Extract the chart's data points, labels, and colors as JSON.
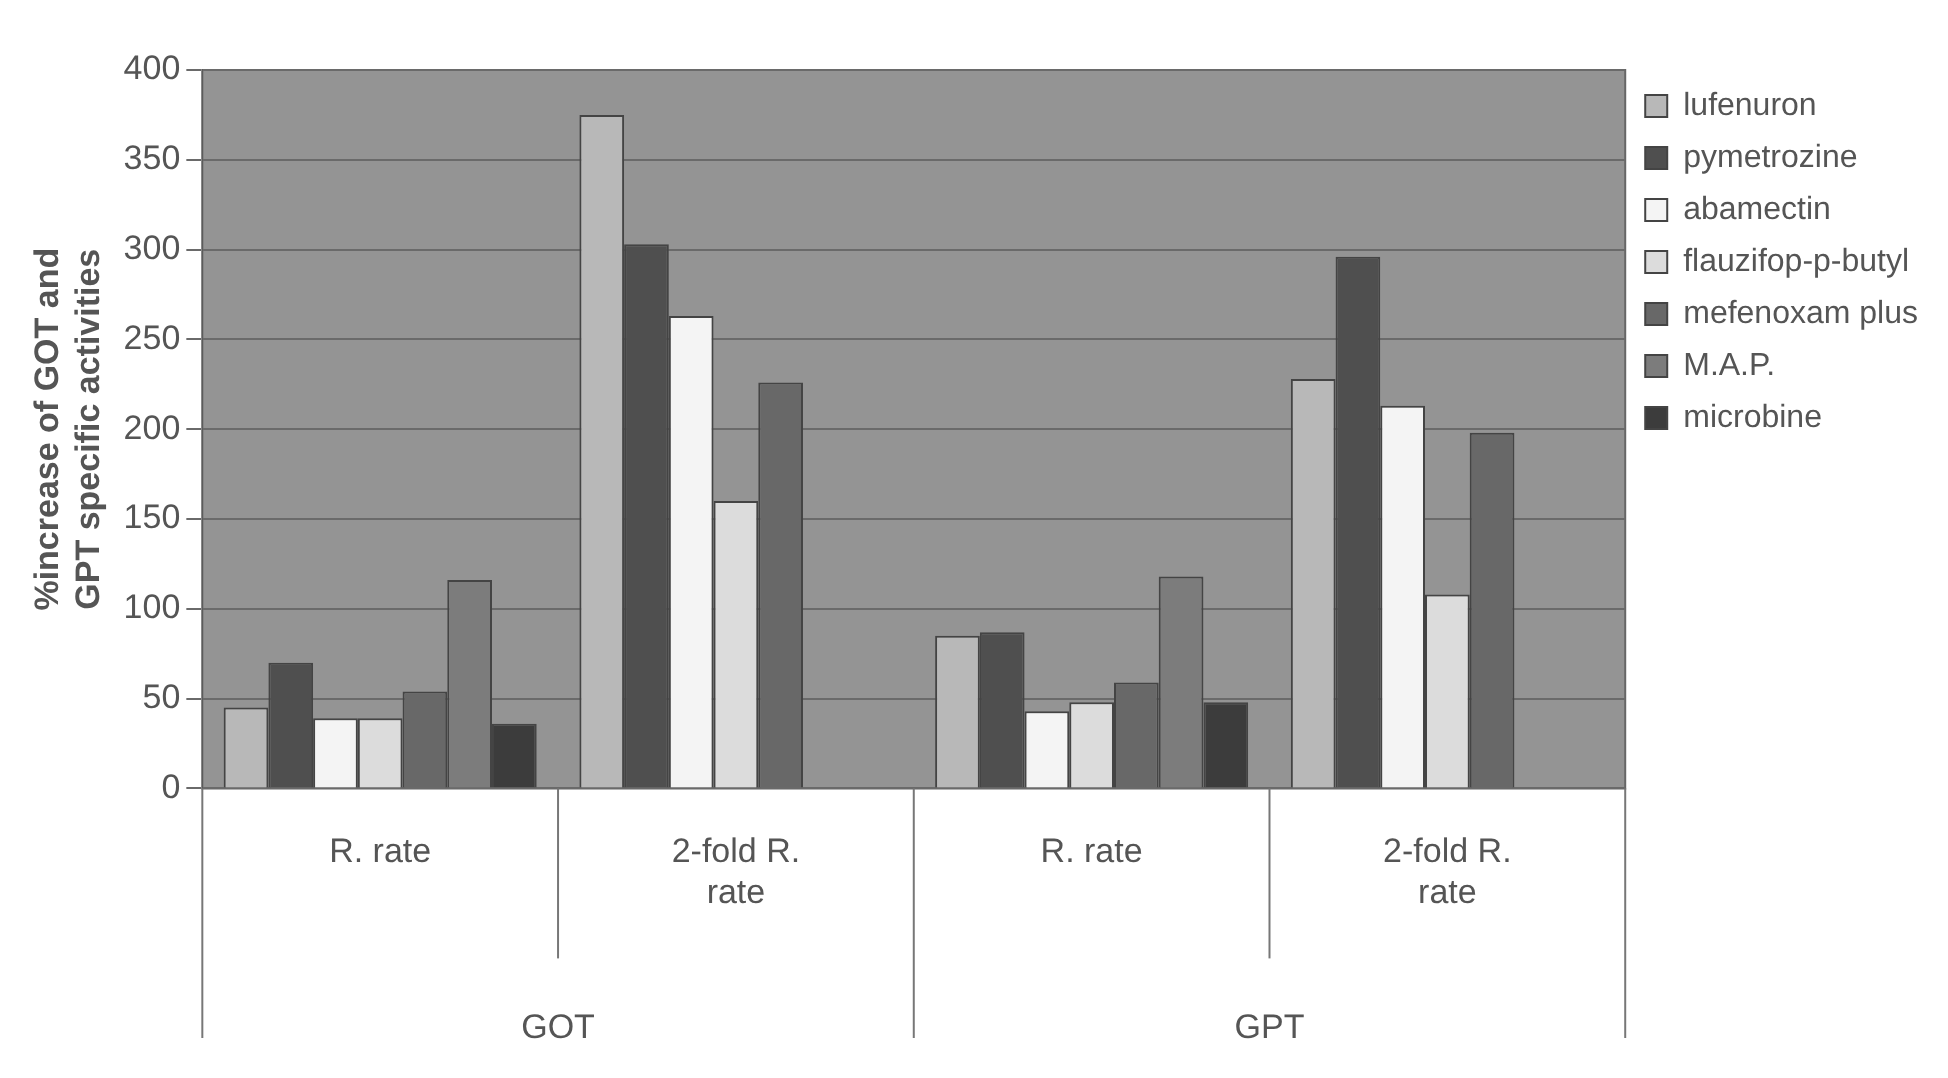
{
  "chart_data": {
    "type": "bar",
    "ylabel": "%increase of GOT and GPT specific activities",
    "categories": [
      "R. rate",
      "2-fold R. rate",
      "R. rate",
      "2-fold R. rate"
    ],
    "annotations": [
      "GOT",
      "GPT"
    ],
    "series": [
      {
        "name": "lufenuron",
        "color": "#b8b8b8",
        "values": [
          45,
          375,
          85,
          228
        ]
      },
      {
        "name": "pymetrozine",
        "color": "#4f4f4f",
        "values": [
          70,
          303,
          87,
          296
        ]
      },
      {
        "name": "abamectin",
        "color": "#f4f4f4",
        "values": [
          39,
          263,
          43,
          213
        ]
      },
      {
        "name": "flauzifop-p-butyl",
        "color": "#dcdcdc",
        "values": [
          39,
          160,
          48,
          108
        ]
      },
      {
        "name": "mefenoxam plus",
        "color": "#686868",
        "values": [
          54,
          226,
          59,
          198
        ]
      },
      {
        "name": "M.A.P.",
        "color": "#7c7c7c",
        "values": [
          116,
          null,
          118,
          null
        ]
      },
      {
        "name": "microbine",
        "color": "#3c3c3c",
        "values": [
          36,
          null,
          48,
          null
        ]
      }
    ],
    "ylim": [
      0,
      400
    ],
    "yticks": [
      0,
      50,
      100,
      150,
      200,
      250,
      300,
      350,
      400
    ],
    "grid": "y",
    "legend": "right"
  }
}
